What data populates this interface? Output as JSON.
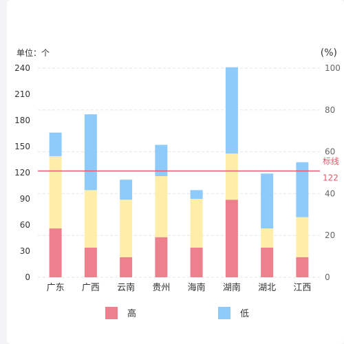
{
  "chart_data": {
    "type": "bar",
    "stacked": true,
    "unit_label": "单位：个",
    "right_axis_label": "(%)",
    "categories": [
      "广东",
      "广西",
      "云南",
      "贵州",
      "海南",
      "湖南",
      "湖北",
      "江西"
    ],
    "series": [
      {
        "name": "高",
        "color": "#ec808d",
        "values": [
          56,
          34,
          23,
          46,
          34,
          89,
          34,
          23
        ]
      },
      {
        "name": "",
        "color": "#ffeeaa",
        "values": [
          83,
          66,
          66,
          70,
          56,
          53,
          22,
          46
        ]
      },
      {
        "name": "低",
        "color": "#8ecbfb",
        "values": [
          27,
          87,
          23,
          36,
          10,
          99,
          63,
          63
        ]
      }
    ],
    "left_axis": {
      "min": 0,
      "max": 240,
      "ticks": [
        0,
        30,
        60,
        90,
        120,
        150,
        180,
        210,
        240
      ]
    },
    "right_axis": {
      "min": 0,
      "max": 100,
      "ticks": [
        0,
        20,
        40,
        60,
        80,
        100
      ]
    },
    "reference_line": {
      "value": 122,
      "label": "标线",
      "value_label": "122",
      "color": "#e25a6b"
    },
    "legend_position": "bottom",
    "grid": true
  }
}
